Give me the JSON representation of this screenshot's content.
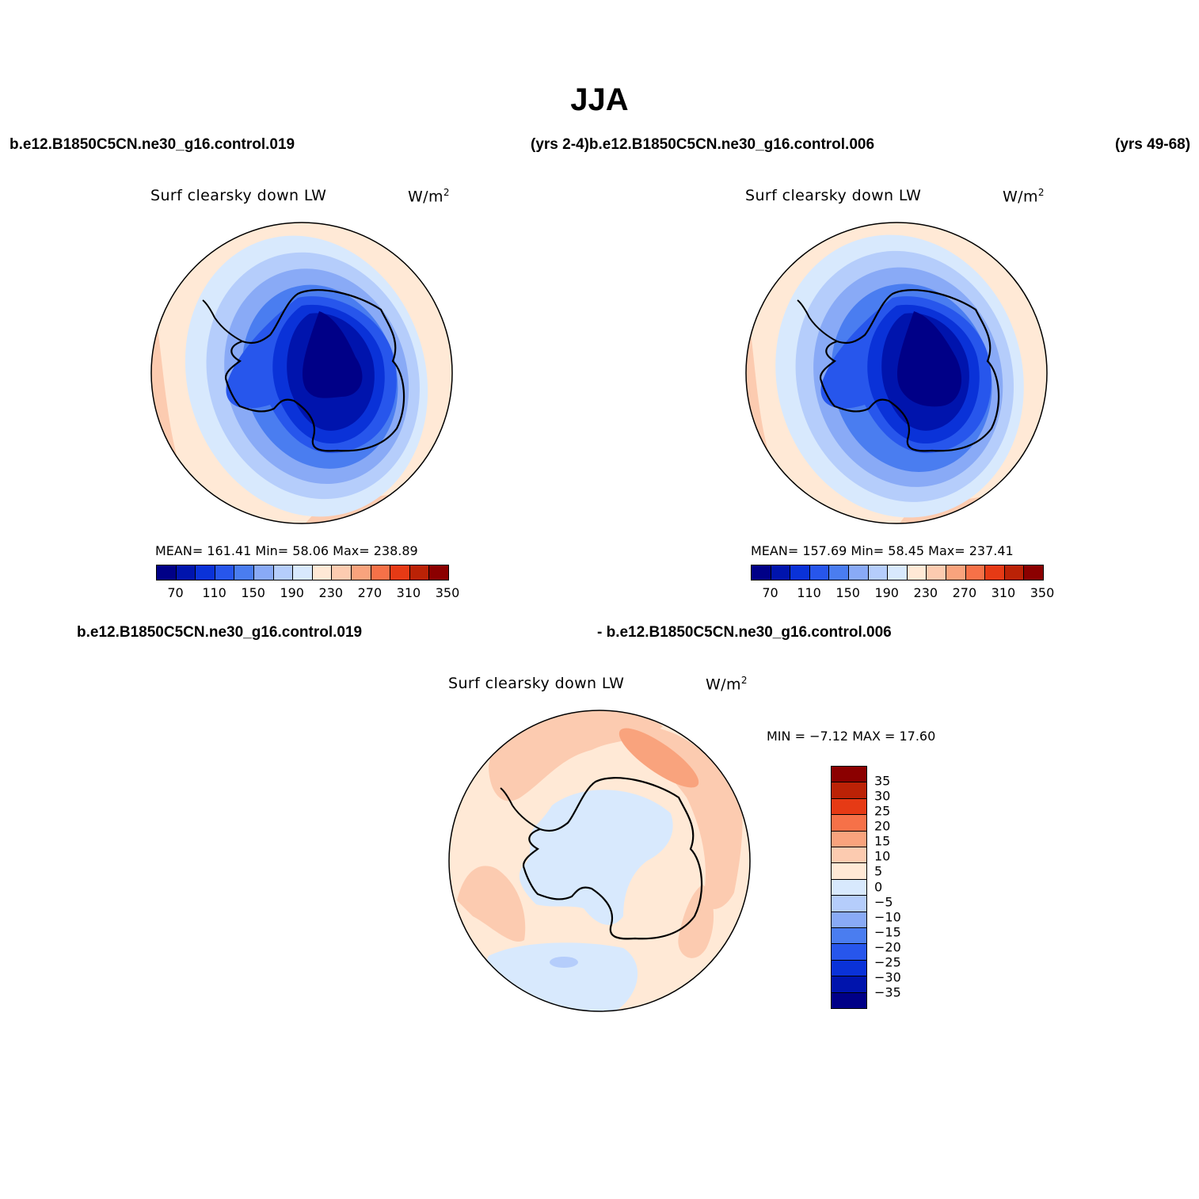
{
  "title": "JJA",
  "case_labels": {
    "top_left": "b.e12.B1850C5CN.ne30_g16.control.019",
    "top_mid": "(yrs 2-4)b.e12.B1850C5CN.ne30_g16.control.006",
    "top_right": "(yrs 49-68)",
    "bottom_left": "b.e12.B1850C5CN.ne30_g16.control.019",
    "bottom_right": "- b.e12.B1850C5CN.ne30_g16.control.006"
  },
  "panels": [
    {
      "variable": "Surf clearsky down LW",
      "units_base": "W/m",
      "units_exp": "2",
      "stats": "MEAN= 161.41   Min=   58.06   Max= 238.89"
    },
    {
      "variable": "Surf clearsky down LW",
      "units_base": "W/m",
      "units_exp": "2",
      "stats": "MEAN= 157.69   Min=   58.45   Max= 237.41"
    },
    {
      "variable": "Surf clearsky down LW",
      "units_base": "W/m",
      "units_exp": "2",
      "stats": "MIN =   −7.12  MAX =   17.60"
    }
  ],
  "colorbar_main": {
    "labels": [
      "70",
      "110",
      "150",
      "190",
      "230",
      "270",
      "310",
      "350"
    ],
    "colors": [
      "#000087",
      "#0014ad",
      "#0a32d8",
      "#2756ec",
      "#4a7df0",
      "#89aaf6",
      "#b5cdfb",
      "#d8e9fd",
      "#ffe9d6",
      "#fccbb0",
      "#f9a37d",
      "#f67148",
      "#e63a15",
      "#bb2206",
      "#8b0000"
    ]
  },
  "colorbar_diff": {
    "labels": [
      "35",
      "30",
      "25",
      "20",
      "15",
      "10",
      "5",
      "0",
      "−5",
      "−10",
      "−15",
      "−20",
      "−25",
      "−30",
      "−35"
    ],
    "colors": [
      "#8b0000",
      "#bb2206",
      "#e63a15",
      "#f67148",
      "#f9a37d",
      "#fccbb0",
      "#ffe9d6",
      "#d8e9fd",
      "#b5cdfb",
      "#89aaf6",
      "#4a7df0",
      "#2756ec",
      "#0a32d8",
      "#0014ad",
      "#000087"
    ]
  }
}
